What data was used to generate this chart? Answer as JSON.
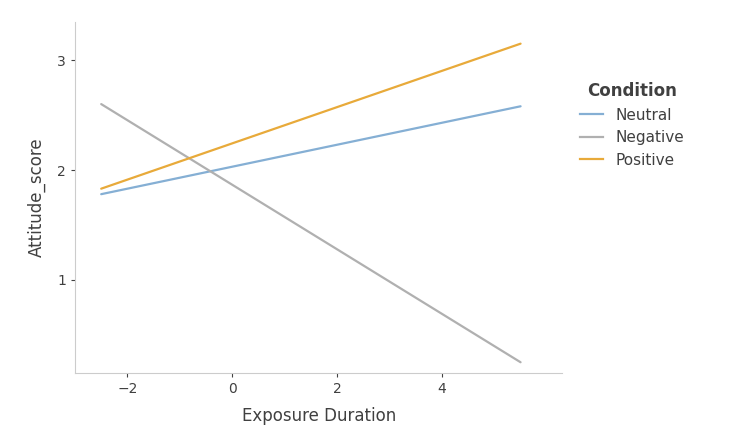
{
  "x_start": -2.5,
  "x_end": 5.5,
  "xlim": [
    -3.0,
    6.3
  ],
  "ylim": [
    0.15,
    3.35
  ],
  "xticks": [
    -2,
    0,
    2,
    4
  ],
  "yticks": [
    1,
    2,
    3
  ],
  "xlabel": "Exposure Duration",
  "ylabel": "Attitude_score",
  "legend_title": "Condition",
  "lines": [
    {
      "label": "Neutral",
      "color": "#85afd4",
      "y_start": 1.78,
      "y_end": 2.58,
      "linewidth": 1.6
    },
    {
      "label": "Negative",
      "color": "#b0b0b0",
      "y_start": 2.6,
      "y_end": 0.25,
      "linewidth": 1.6
    },
    {
      "label": "Positive",
      "color": "#e8aa3a",
      "y_start": 1.83,
      "y_end": 3.15,
      "linewidth": 1.6
    }
  ],
  "background_color": "#ffffff",
  "legend_fontsize": 11,
  "axis_label_fontsize": 12,
  "tick_fontsize": 10,
  "legend_title_fontsize": 12,
  "spine_color": "#cccccc",
  "text_color": "#404040"
}
